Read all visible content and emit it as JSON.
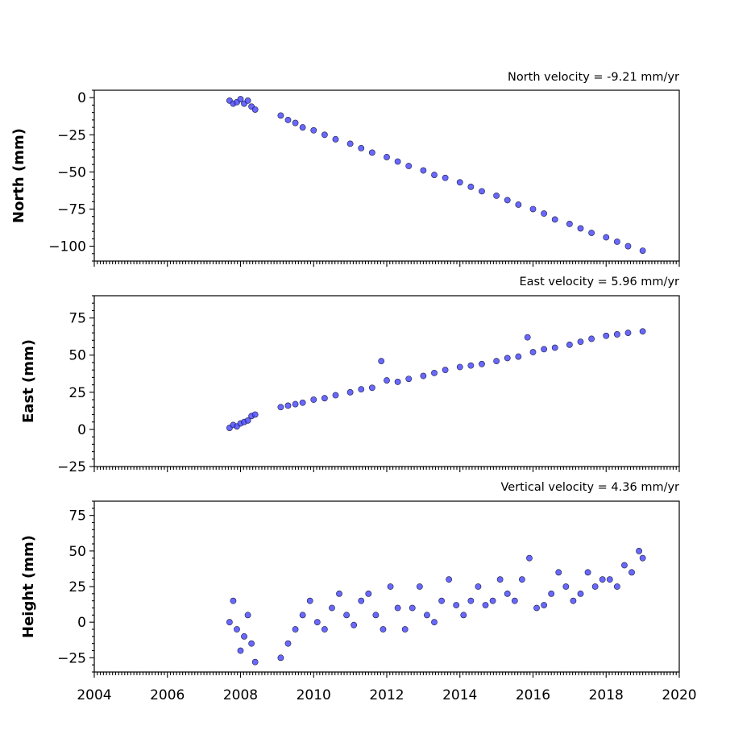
{
  "chart_data": [
    {
      "type": "scatter",
      "annotation": "North velocity = -9.21 mm/yr",
      "ylabel": "North (mm)",
      "ylim": [
        -110,
        5
      ],
      "yticks": [
        0,
        -25,
        -50,
        -75,
        -100
      ],
      "ytick_labels": [
        "0",
        "−25",
        "−50",
        "−75",
        "−100"
      ],
      "xlim": [
        2004,
        2020
      ],
      "xticks": [
        2004,
        2006,
        2008,
        2010,
        2012,
        2014,
        2016,
        2018,
        2020
      ],
      "velocity_mm_per_yr": -9.21,
      "series": [
        {
          "x": [
            2007.7,
            2007.8,
            2007.9,
            2008.0,
            2008.1,
            2008.2,
            2008.3,
            2008.4,
            2009.1,
            2009.3,
            2009.5,
            2009.7,
            2010.0,
            2010.3,
            2010.6,
            2011.0,
            2011.3,
            2011.6,
            2012.0,
            2012.3,
            2012.6,
            2013.0,
            2013.3,
            2013.6,
            2014.0,
            2014.3,
            2014.6,
            2015.0,
            2015.3,
            2015.6,
            2016.0,
            2016.3,
            2016.6,
            2017.0,
            2017.3,
            2017.6,
            2018.0,
            2018.3,
            2018.6,
            2019.0
          ],
          "y": [
            -2,
            -4,
            -3,
            -1,
            -4,
            -2,
            -6,
            -8,
            -12,
            -15,
            -17,
            -20,
            -22,
            -25,
            -28,
            -31,
            -34,
            -37,
            -40,
            -43,
            -46,
            -49,
            -52,
            -54,
            -57,
            -60,
            -63,
            -66,
            -69,
            -72,
            -75,
            -78,
            -82,
            -85,
            -88,
            -91,
            -94,
            -97,
            -100,
            -103
          ]
        }
      ]
    },
    {
      "type": "scatter",
      "annotation": "East velocity = 5.96 mm/yr",
      "ylabel": "East (mm)",
      "ylim": [
        -25,
        90
      ],
      "yticks": [
        75,
        50,
        25,
        0,
        -25
      ],
      "ytick_labels": [
        "75",
        "50",
        "25",
        "0",
        "−25"
      ],
      "xlim": [
        2004,
        2020
      ],
      "xticks": [
        2004,
        2006,
        2008,
        2010,
        2012,
        2014,
        2016,
        2018,
        2020
      ],
      "velocity_mm_per_yr": 5.96,
      "series": [
        {
          "x": [
            2007.7,
            2007.8,
            2007.9,
            2008.0,
            2008.1,
            2008.2,
            2008.3,
            2008.4,
            2009.1,
            2009.3,
            2009.5,
            2009.7,
            2010.0,
            2010.3,
            2010.6,
            2011.0,
            2011.3,
            2011.6,
            2011.85,
            2012.0,
            2012.3,
            2012.6,
            2013.0,
            2013.3,
            2013.6,
            2014.0,
            2014.3,
            2014.6,
            2015.0,
            2015.3,
            2015.6,
            2015.85,
            2016.0,
            2016.3,
            2016.6,
            2017.0,
            2017.3,
            2017.6,
            2018.0,
            2018.3,
            2018.6,
            2019.0
          ],
          "y": [
            1,
            3,
            2,
            4,
            5,
            6,
            9,
            10,
            15,
            16,
            17,
            18,
            20,
            21,
            23,
            25,
            27,
            28,
            46,
            33,
            32,
            34,
            36,
            38,
            40,
            42,
            43,
            44,
            46,
            48,
            49,
            62,
            52,
            54,
            55,
            57,
            59,
            61,
            63,
            64,
            65,
            66
          ]
        }
      ]
    },
    {
      "type": "scatter",
      "annotation": "Vertical velocity = 4.36 mm/yr",
      "ylabel": "Height (mm)",
      "ylim": [
        -35,
        85
      ],
      "yticks": [
        75,
        50,
        25,
        0,
        -25
      ],
      "ytick_labels": [
        "75",
        "50",
        "25",
        "0",
        "−25"
      ],
      "xlim": [
        2004,
        2020
      ],
      "xticks": [
        2004,
        2006,
        2008,
        2010,
        2012,
        2014,
        2016,
        2018,
        2020
      ],
      "velocity_mm_per_yr": 4.36,
      "series": [
        {
          "x": [
            2007.7,
            2007.8,
            2007.9,
            2008.0,
            2008.1,
            2008.2,
            2008.3,
            2008.4,
            2009.1,
            2009.3,
            2009.5,
            2009.7,
            2009.9,
            2010.1,
            2010.3,
            2010.5,
            2010.7,
            2010.9,
            2011.1,
            2011.3,
            2011.5,
            2011.7,
            2011.9,
            2012.1,
            2012.3,
            2012.5,
            2012.7,
            2012.9,
            2013.1,
            2013.3,
            2013.5,
            2013.7,
            2013.9,
            2014.1,
            2014.3,
            2014.5,
            2014.7,
            2014.9,
            2015.1,
            2015.3,
            2015.5,
            2015.7,
            2015.9,
            2016.1,
            2016.3,
            2016.5,
            2016.7,
            2016.9,
            2017.1,
            2017.3,
            2017.5,
            2017.7,
            2017.9,
            2018.1,
            2018.3,
            2018.5,
            2018.7,
            2018.9,
            2019.0
          ],
          "y": [
            0,
            15,
            -5,
            -20,
            -10,
            5,
            -15,
            -28,
            -25,
            -15,
            -5,
            5,
            15,
            0,
            -5,
            10,
            20,
            5,
            -2,
            15,
            20,
            5,
            -5,
            25,
            10,
            -5,
            10,
            25,
            5,
            0,
            15,
            30,
            12,
            5,
            15,
            25,
            12,
            15,
            30,
            20,
            15,
            30,
            45,
            10,
            12,
            20,
            35,
            25,
            15,
            20,
            35,
            25,
            30,
            30,
            25,
            40,
            35,
            50,
            45
          ]
        }
      ]
    }
  ],
  "colors": {
    "marker_fill": "#4d4dff",
    "marker_edge": "#1a1a40"
  }
}
